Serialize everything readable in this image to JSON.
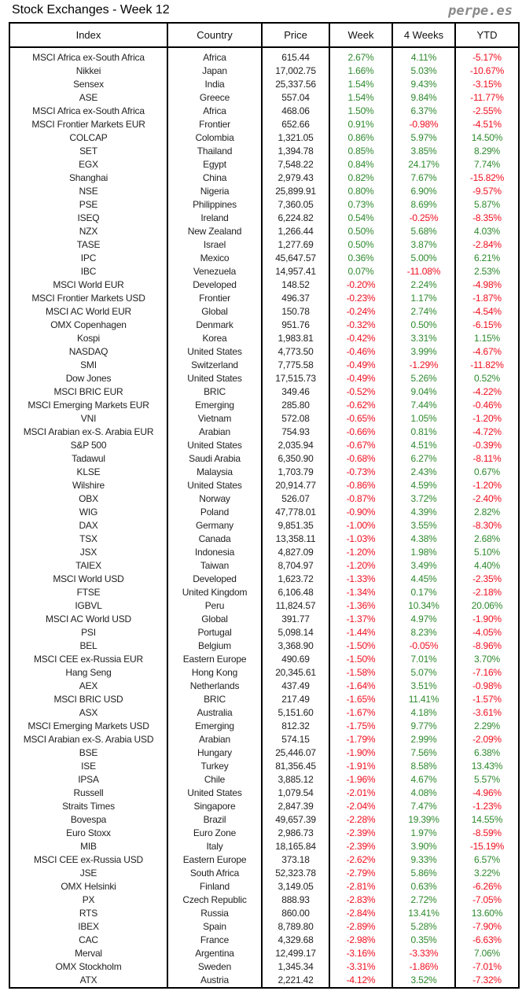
{
  "title": "Stock Exchanges - Week 12",
  "brand": "perpe.es",
  "colors": {
    "positive": "#2f8a2f",
    "negative": "#f01020"
  },
  "headers": [
    "Index",
    "Country",
    "Price",
    "Week",
    "4 Weeks",
    "YTD"
  ],
  "rows": [
    [
      "MSCI Africa ex-South Africa",
      "Africa",
      "615.44",
      "2.67%",
      "4.11%",
      "-5.17%"
    ],
    [
      "Nikkei",
      "Japan",
      "17,002.75",
      "1.66%",
      "5.03%",
      "-10.67%"
    ],
    [
      "Sensex",
      "India",
      "25,337.56",
      "1.54%",
      "9.43%",
      "-3.15%"
    ],
    [
      "ASE",
      "Greece",
      "557.04",
      "1.54%",
      "9.84%",
      "-11.77%"
    ],
    [
      "MSCI Africa ex-South Africa",
      "Africa",
      "468.06",
      "1.50%",
      "6.37%",
      "-2.55%"
    ],
    [
      "MSCI Frontier Markets EUR",
      "Frontier",
      "652.66",
      "0.91%",
      "-0.98%",
      "-4.51%"
    ],
    [
      "COLCAP",
      "Colombia",
      "1,321.05",
      "0.86%",
      "5.97%",
      "14.50%"
    ],
    [
      "SET",
      "Thailand",
      "1,394.78",
      "0.85%",
      "3.85%",
      "8.29%"
    ],
    [
      "EGX",
      "Egypt",
      "7,548.22",
      "0.84%",
      "24.17%",
      "7.74%"
    ],
    [
      "Shanghai",
      "China",
      "2,979.43",
      "0.82%",
      "7.67%",
      "-15.82%"
    ],
    [
      "NSE",
      "Nigeria",
      "25,899.91",
      "0.80%",
      "6.90%",
      "-9.57%"
    ],
    [
      "PSE",
      "Philippines",
      "7,360.05",
      "0.73%",
      "8.69%",
      "5.87%"
    ],
    [
      "ISEQ",
      "Ireland",
      "6,224.82",
      "0.54%",
      "-0.25%",
      "-8.35%"
    ],
    [
      "NZX",
      "New Zealand",
      "1,266.44",
      "0.50%",
      "5.68%",
      "4.03%"
    ],
    [
      "TASE",
      "Israel",
      "1,277.69",
      "0.50%",
      "3.87%",
      "-2.84%"
    ],
    [
      "IPC",
      "Mexico",
      "45,647.57",
      "0.36%",
      "5.00%",
      "6.21%"
    ],
    [
      "IBC",
      "Venezuela",
      "14,957.41",
      "0.07%",
      "-11.08%",
      "2.53%"
    ],
    [
      "MSCI World EUR",
      "Developed",
      "148.52",
      "-0.20%",
      "2.24%",
      "-4.98%"
    ],
    [
      "MSCI Frontier Markets USD",
      "Frontier",
      "496.37",
      "-0.23%",
      "1.17%",
      "-1.87%"
    ],
    [
      "MSCI AC World EUR",
      "Global",
      "150.78",
      "-0.24%",
      "2.74%",
      "-4.54%"
    ],
    [
      "OMX Copenhagen",
      "Denmark",
      "951.76",
      "-0.32%",
      "0.50%",
      "-6.15%"
    ],
    [
      "Kospi",
      "Korea",
      "1,983.81",
      "-0.42%",
      "3.31%",
      "1.15%"
    ],
    [
      "NASDAQ",
      "United States",
      "4,773.50",
      "-0.46%",
      "3.99%",
      "-4.67%"
    ],
    [
      "SMI",
      "Switzerland",
      "7,775.58",
      "-0.49%",
      "-1.29%",
      "-11.82%"
    ],
    [
      "Dow Jones",
      "United States",
      "17,515.73",
      "-0.49%",
      "5.26%",
      "0.52%"
    ],
    [
      "MSCI BRIC EUR",
      "BRIC",
      "349.46",
      "-0.52%",
      "9.04%",
      "-4.22%"
    ],
    [
      "MSCI Emerging Markets EUR",
      "Emerging",
      "285.80",
      "-0.62%",
      "7.44%",
      "-0.46%"
    ],
    [
      "VNI",
      "Vietnam",
      "572.08",
      "-0.65%",
      "1.05%",
      "-1.20%"
    ],
    [
      "MSCI Arabian ex-S. Arabia EUR",
      "Arabian",
      "754.93",
      "-0.66%",
      "0.81%",
      "-4.72%"
    ],
    [
      "S&P 500",
      "United States",
      "2,035.94",
      "-0.67%",
      "4.51%",
      "-0.39%"
    ],
    [
      "Tadawul",
      "Saudi Arabia",
      "6,350.90",
      "-0.68%",
      "6.27%",
      "-8.11%"
    ],
    [
      "KLSE",
      "Malaysia",
      "1,703.79",
      "-0.73%",
      "2.43%",
      "0.67%"
    ],
    [
      "Wilshire",
      "United States",
      "20,914.77",
      "-0.86%",
      "4.59%",
      "-1.20%"
    ],
    [
      "OBX",
      "Norway",
      "526.07",
      "-0.87%",
      "3.72%",
      "-2.40%"
    ],
    [
      "WIG",
      "Poland",
      "47,778.01",
      "-0.90%",
      "4.39%",
      "2.82%"
    ],
    [
      "DAX",
      "Germany",
      "9,851.35",
      "-1.00%",
      "3.55%",
      "-8.30%"
    ],
    [
      "TSX",
      "Canada",
      "13,358.11",
      "-1.03%",
      "4.38%",
      "2.68%"
    ],
    [
      "JSX",
      "Indonesia",
      "4,827.09",
      "-1.20%",
      "1.98%",
      "5.10%"
    ],
    [
      "TAIEX",
      "Taiwan",
      "8,704.97",
      "-1.20%",
      "3.49%",
      "4.40%"
    ],
    [
      "MSCI World USD",
      "Developed",
      "1,623.72",
      "-1.33%",
      "4.45%",
      "-2.35%"
    ],
    [
      "FTSE",
      "United Kingdom",
      "6,106.48",
      "-1.34%",
      "0.17%",
      "-2.18%"
    ],
    [
      "IGBVL",
      "Peru",
      "11,824.57",
      "-1.36%",
      "10.34%",
      "20.06%"
    ],
    [
      "MSCI AC World USD",
      "Global",
      "391.77",
      "-1.37%",
      "4.97%",
      "-1.90%"
    ],
    [
      "PSI",
      "Portugal",
      "5,098.14",
      "-1.44%",
      "8.23%",
      "-4.05%"
    ],
    [
      "BEL",
      "Belgium",
      "3,368.90",
      "-1.50%",
      "-0.05%",
      "-8.96%"
    ],
    [
      "MSCI CEE ex-Russia EUR",
      "Eastern Europe",
      "490.69",
      "-1.50%",
      "7.01%",
      "3.70%"
    ],
    [
      "Hang Seng",
      "Hong Kong",
      "20,345.61",
      "-1.58%",
      "5.07%",
      "-7.16%"
    ],
    [
      "AEX",
      "Netherlands",
      "437.49",
      "-1.64%",
      "3.51%",
      "-0.98%"
    ],
    [
      "MSCI BRIC USD",
      "BRIC",
      "217.49",
      "-1.65%",
      "11.41%",
      "-1.57%"
    ],
    [
      "ASX",
      "Australia",
      "5,151.60",
      "-1.67%",
      "4.18%",
      "-3.61%"
    ],
    [
      "MSCI Emerging Markets USD",
      "Emerging",
      "812.32",
      "-1.75%",
      "9.77%",
      "2.29%"
    ],
    [
      "MSCI Arabian ex-S. Arabia USD",
      "Arabian",
      "574.15",
      "-1.79%",
      "2.99%",
      "-2.09%"
    ],
    [
      "BSE",
      "Hungary",
      "25,446.07",
      "-1.90%",
      "7.56%",
      "6.38%"
    ],
    [
      "ISE",
      "Turkey",
      "81,356.45",
      "-1.91%",
      "8.58%",
      "13.43%"
    ],
    [
      "IPSA",
      "Chile",
      "3,885.12",
      "-1.96%",
      "4.67%",
      "5.57%"
    ],
    [
      "Russell",
      "United States",
      "1,079.54",
      "-2.01%",
      "4.08%",
      "-4.96%"
    ],
    [
      "Straits Times",
      "Singapore",
      "2,847.39",
      "-2.04%",
      "7.47%",
      "-1.23%"
    ],
    [
      "Bovespa",
      "Brazil",
      "49,657.39",
      "-2.28%",
      "19.39%",
      "14.55%"
    ],
    [
      "Euro Stoxx",
      "Euro Zone",
      "2,986.73",
      "-2.39%",
      "1.97%",
      "-8.59%"
    ],
    [
      "MIB",
      "Italy",
      "18,165.84",
      "-2.39%",
      "3.90%",
      "-15.19%"
    ],
    [
      "MSCI CEE ex-Russia USD",
      "Eastern Europe",
      "373.18",
      "-2.62%",
      "9.33%",
      "6.57%"
    ],
    [
      "JSE",
      "South Africa",
      "52,323.78",
      "-2.79%",
      "5.86%",
      "3.22%"
    ],
    [
      "OMX Helsinki",
      "Finland",
      "3,149.05",
      "-2.81%",
      "0.63%",
      "-6.26%"
    ],
    [
      "PX",
      "Czech Republic",
      "888.93",
      "-2.83%",
      "2.72%",
      "-7.05%"
    ],
    [
      "RTS",
      "Russia",
      "860.00",
      "-2.84%",
      "13.41%",
      "13.60%"
    ],
    [
      "IBEX",
      "Spain",
      "8,789.80",
      "-2.89%",
      "5.28%",
      "-7.90%"
    ],
    [
      "CAC",
      "France",
      "4,329.68",
      "-2.98%",
      "0.35%",
      "-6.63%"
    ],
    [
      "Merval",
      "Argentina",
      "12,499.17",
      "-3.16%",
      "-3.33%",
      "7.06%"
    ],
    [
      "OMX Stockholm",
      "Sweden",
      "1,345.34",
      "-3.31%",
      "-1.86%",
      "-7.01%"
    ],
    [
      "ATX",
      "Austria",
      "2,221.42",
      "-4.12%",
      "3.52%",
      "-7.32%"
    ]
  ]
}
